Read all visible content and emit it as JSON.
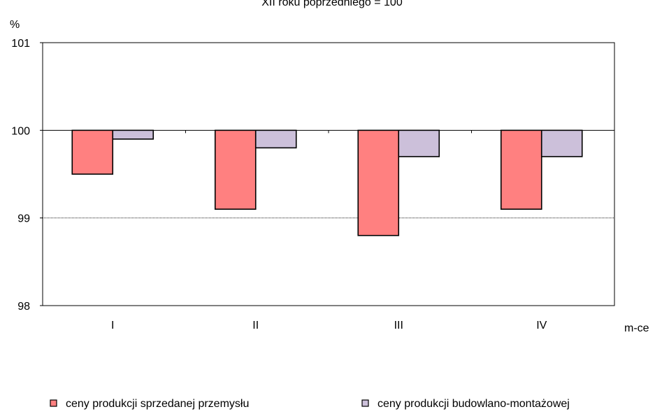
{
  "chart_data": {
    "type": "bar",
    "title": "XII roku poprzedniego = 100",
    "ylabel": "%",
    "xlabel": "m-ce",
    "categories": [
      "I",
      "II",
      "III",
      "IV"
    ],
    "baseline": 100,
    "ylim": [
      98,
      101
    ],
    "yticks": [
      "98",
      "99",
      "100",
      "101"
    ],
    "grid": true,
    "legend_position": "bottom",
    "series": [
      {
        "name": "ceny produkcji sprzedanej przemysłu",
        "color": "#ff8080",
        "values": [
          99.5,
          99.1,
          98.8,
          99.1
        ]
      },
      {
        "name": "ceny produkcji budowlano-montażowej",
        "color": "#ccc0da",
        "values": [
          99.9,
          99.8,
          99.7,
          99.7
        ]
      }
    ]
  }
}
